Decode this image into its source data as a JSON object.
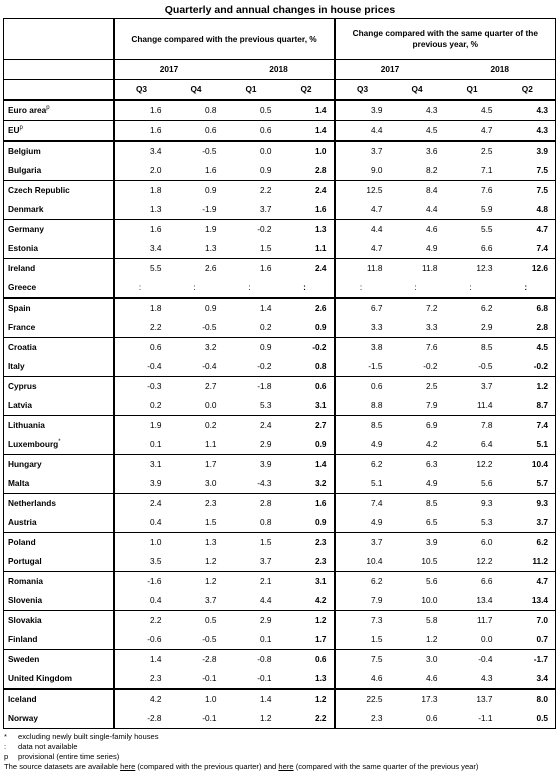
{
  "title": "Quarterly and annual changes in house prices",
  "header": {
    "group1": "Change compared with the previous quarter, %",
    "group2": "Change compared with the same quarter of the previous year, %",
    "years": [
      "2017",
      "2018",
      "2017",
      "2018"
    ],
    "quarters": [
      "Q3",
      "Q4",
      "Q1",
      "Q2",
      "Q3",
      "Q4",
      "Q1",
      "Q2"
    ]
  },
  "rows": [
    {
      "name": "Euro area",
      "sup": "p",
      "vals": [
        "1.6",
        "0.8",
        "0.5",
        "1.4",
        "3.9",
        "4.3",
        "4.5",
        "4.3"
      ]
    },
    {
      "name": "EU",
      "sup": "p",
      "vals": [
        "1.6",
        "0.6",
        "0.6",
        "1.4",
        "4.4",
        "4.5",
        "4.7",
        "4.3"
      ]
    },
    {
      "name": "Belgium",
      "sup": "",
      "vals": [
        "3.4",
        "-0.5",
        "0.0",
        "1.0",
        "3.7",
        "3.6",
        "2.5",
        "3.9"
      ]
    },
    {
      "name": "Bulgaria",
      "sup": "",
      "vals": [
        "2.0",
        "1.6",
        "0.9",
        "2.8",
        "9.0",
        "8.2",
        "7.1",
        "7.5"
      ]
    },
    {
      "name": "Czech Republic",
      "sup": "",
      "vals": [
        "1.8",
        "0.9",
        "2.2",
        "2.4",
        "12.5",
        "8.4",
        "7.6",
        "7.5"
      ]
    },
    {
      "name": "Denmark",
      "sup": "",
      "vals": [
        "1.3",
        "-1.9",
        "3.7",
        "1.6",
        "4.7",
        "4.4",
        "5.9",
        "4.8"
      ]
    },
    {
      "name": "Germany",
      "sup": "",
      "vals": [
        "1.6",
        "1.9",
        "-0.2",
        "1.3",
        "4.4",
        "4.6",
        "5.5",
        "4.7"
      ]
    },
    {
      "name": "Estonia",
      "sup": "",
      "vals": [
        "3.4",
        "1.3",
        "1.5",
        "1.1",
        "4.7",
        "4.9",
        "6.6",
        "7.4"
      ]
    },
    {
      "name": "Ireland",
      "sup": "",
      "vals": [
        "5.5",
        "2.6",
        "1.6",
        "2.4",
        "11.8",
        "11.8",
        "12.3",
        "12.6"
      ]
    },
    {
      "name": "Greece",
      "sup": "",
      "vals": [
        ":",
        ":",
        ":",
        ":",
        ":",
        ":",
        ":",
        ":"
      ]
    },
    {
      "name": "Spain",
      "sup": "",
      "vals": [
        "1.8",
        "0.9",
        "1.4",
        "2.6",
        "6.7",
        "7.2",
        "6.2",
        "6.8"
      ]
    },
    {
      "name": "France",
      "sup": "",
      "vals": [
        "2.2",
        "-0.5",
        "0.2",
        "0.9",
        "3.3",
        "3.3",
        "2.9",
        "2.8"
      ]
    },
    {
      "name": "Croatia",
      "sup": "",
      "vals": [
        "0.6",
        "3.2",
        "0.9",
        "-0.2",
        "3.8",
        "7.6",
        "8.5",
        "4.5"
      ]
    },
    {
      "name": "Italy",
      "sup": "",
      "vals": [
        "-0.4",
        "-0.4",
        "-0.2",
        "0.8",
        "-1.5",
        "-0.2",
        "-0.5",
        "-0.2"
      ]
    },
    {
      "name": "Cyprus",
      "sup": "",
      "vals": [
        "-0.3",
        "2.7",
        "-1.8",
        "0.6",
        "0.6",
        "2.5",
        "3.7",
        "1.2"
      ]
    },
    {
      "name": "Latvia",
      "sup": "",
      "vals": [
        "0.2",
        "0.0",
        "5.3",
        "3.1",
        "8.8",
        "7.9",
        "11.4",
        "8.7"
      ]
    },
    {
      "name": "Lithuania",
      "sup": "",
      "vals": [
        "1.9",
        "0.2",
        "2.4",
        "2.7",
        "8.5",
        "6.9",
        "7.8",
        "7.4"
      ]
    },
    {
      "name": "Luxembourg",
      "sup": "*",
      "vals": [
        "0.1",
        "1.1",
        "2.9",
        "0.9",
        "4.9",
        "4.2",
        "6.4",
        "5.1"
      ]
    },
    {
      "name": "Hungary",
      "sup": "",
      "vals": [
        "3.1",
        "1.7",
        "3.9",
        "1.4",
        "6.2",
        "6.3",
        "12.2",
        "10.4"
      ]
    },
    {
      "name": "Malta",
      "sup": "",
      "vals": [
        "3.9",
        "3.0",
        "-4.3",
        "3.2",
        "5.1",
        "4.9",
        "5.6",
        "5.7"
      ]
    },
    {
      "name": "Netherlands",
      "sup": "",
      "vals": [
        "2.4",
        "2.3",
        "2.8",
        "1.6",
        "7.4",
        "8.5",
        "9.3",
        "9.3"
      ]
    },
    {
      "name": "Austria",
      "sup": "",
      "vals": [
        "0.4",
        "1.5",
        "0.8",
        "0.9",
        "4.9",
        "6.5",
        "5.3",
        "3.7"
      ]
    },
    {
      "name": "Poland",
      "sup": "",
      "vals": [
        "1.0",
        "1.3",
        "1.5",
        "2.3",
        "3.7",
        "3.9",
        "6.0",
        "6.2"
      ]
    },
    {
      "name": "Portugal",
      "sup": "",
      "vals": [
        "3.5",
        "1.2",
        "3.7",
        "2.3",
        "10.4",
        "10.5",
        "12.2",
        "11.2"
      ]
    },
    {
      "name": "Romania",
      "sup": "",
      "vals": [
        "-1.6",
        "1.2",
        "2.1",
        "3.1",
        "6.2",
        "5.6",
        "6.6",
        "4.7"
      ]
    },
    {
      "name": "Slovenia",
      "sup": "",
      "vals": [
        "0.4",
        "3.7",
        "4.4",
        "4.2",
        "7.9",
        "10.0",
        "13.4",
        "13.4"
      ]
    },
    {
      "name": "Slovakia",
      "sup": "",
      "vals": [
        "2.2",
        "0.5",
        "2.9",
        "1.2",
        "7.3",
        "5.8",
        "11.7",
        "7.0"
      ]
    },
    {
      "name": "Finland",
      "sup": "",
      "vals": [
        "-0.6",
        "-0.5",
        "0.1",
        "1.7",
        "1.5",
        "1.2",
        "0.0",
        "0.7"
      ]
    },
    {
      "name": "Sweden",
      "sup": "",
      "vals": [
        "1.4",
        "-2.8",
        "-0.8",
        "0.6",
        "7.5",
        "3.0",
        "-0.4",
        "-1.7"
      ]
    },
    {
      "name": "United Kingdom",
      "sup": "",
      "vals": [
        "2.3",
        "-0.1",
        "-0.1",
        "1.3",
        "4.6",
        "4.6",
        "4.3",
        "3.4"
      ]
    },
    {
      "name": "Iceland",
      "sup": "",
      "vals": [
        "4.2",
        "1.0",
        "1.4",
        "1.2",
        "22.5",
        "17.3",
        "13.7",
        "8.0"
      ]
    },
    {
      "name": "Norway",
      "sup": "",
      "vals": [
        "-2.8",
        "-0.1",
        "1.2",
        "2.2",
        "2.3",
        "0.6",
        "-1.1",
        "0.5"
      ]
    }
  ],
  "notes": {
    "n1_sym": "*",
    "n1_text": "excluding newly built single-family houses",
    "n2_sym": ":",
    "n2_text": "data not available",
    "n3_sym": "p",
    "n3_text": "provisional (entire time series)",
    "source_a": "The source datasets are available ",
    "link1": "here",
    "source_b": " (compared with the previous quarter) and ",
    "link2": "here",
    "source_c": " (compared with the same quarter of the previous year)"
  }
}
